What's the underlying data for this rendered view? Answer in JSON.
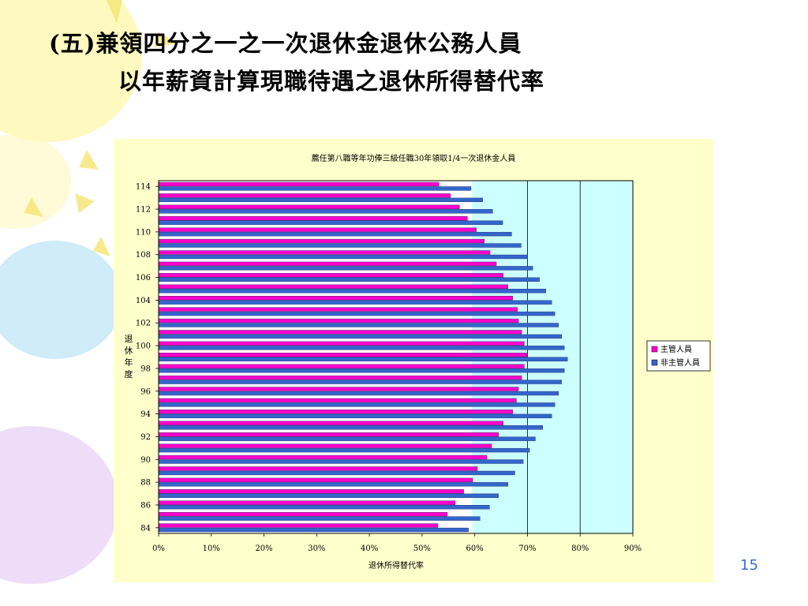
{
  "slide": {
    "title_line1": "(五)兼領四分之一之一次退休金退休公務人員",
    "title_line2": "以年薪資計算現職待遇之退休所得替代率",
    "page_number": "15"
  },
  "colors": {
    "panel_bg": "#ffffcc",
    "plot_bg": "#ccffff",
    "supervisor": "#ff00cc",
    "non_supervisor": "#3366cc",
    "balloon_yellow": "#fdf7a8",
    "balloon_blue": "#bfe6f5",
    "balloon_purple": "#ead4f6"
  },
  "chart_data": {
    "type": "bar",
    "orientation": "horizontal",
    "title": "薦任第八職等年功俸三級任職30年領取1/4一次退休金人員",
    "xlabel": "退休所得替代率",
    "ylabel": "退休年度",
    "xlim": [
      0,
      90
    ],
    "x_ticks": [
      "0%",
      "10%",
      "20%",
      "30%",
      "40%",
      "50%",
      "60%",
      "70%",
      "80%",
      "90%"
    ],
    "gridlines_x": [
      70,
      80
    ],
    "categories": [
      "84",
      "85",
      "86",
      "87",
      "88",
      "89",
      "90",
      "91",
      "92",
      "93",
      "94",
      "95",
      "96",
      "97",
      "98",
      "99",
      "100",
      "101",
      "102",
      "103",
      "104",
      "105",
      "106",
      "107",
      "108",
      "109",
      "110",
      "111",
      "112",
      "113",
      "114"
    ],
    "y_tick_labels": [
      "84",
      "86",
      "88",
      "90",
      "92",
      "94",
      "96",
      "98",
      "100",
      "102",
      "104",
      "106",
      "108",
      "110",
      "112",
      "114"
    ],
    "legend_position": "right",
    "series": [
      {
        "name": "主管人員",
        "values": [
          53.0,
          54.8,
          56.3,
          57.9,
          59.6,
          60.5,
          62.3,
          63.2,
          64.5,
          65.4,
          67.2,
          67.9,
          68.3,
          68.9,
          69.4,
          69.9,
          69.4,
          68.9,
          68.3,
          68.1,
          67.2,
          66.3,
          65.4,
          64.1,
          62.9,
          61.8,
          60.3,
          58.6,
          57.1,
          55.4,
          53.2
        ]
      },
      {
        "name": "非主管人員",
        "values": [
          58.8,
          61.0,
          62.8,
          64.5,
          66.3,
          67.6,
          69.2,
          70.4,
          71.5,
          72.9,
          74.6,
          75.2,
          75.9,
          76.5,
          77.0,
          77.6,
          77.0,
          76.5,
          75.9,
          75.2,
          74.6,
          73.5,
          72.3,
          71.0,
          70.0,
          68.8,
          67.0,
          65.3,
          63.4,
          61.5,
          59.3
        ]
      }
    ]
  }
}
